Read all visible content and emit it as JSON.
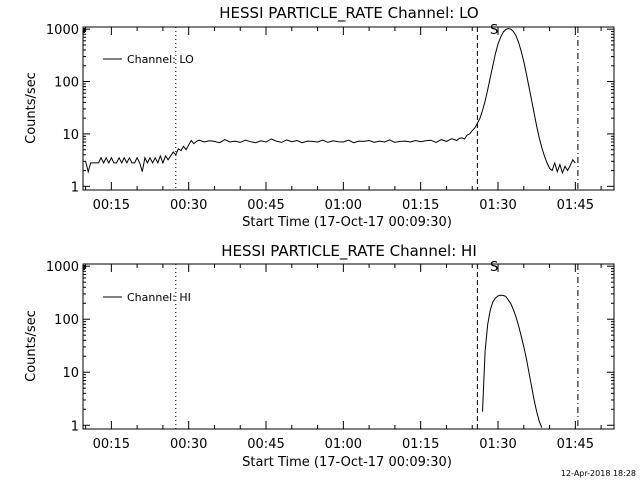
{
  "chart_data": [
    {
      "type": "line",
      "title": "HESSI PARTICLE_RATE Channel: LO",
      "xlabel": "Start Time (17-Oct-17 00:09:30)",
      "ylabel": "Counts/sec",
      "yscale": "log",
      "ylim": [
        0.85,
        1100
      ],
      "xlim_min": [
        9.5,
        112.5
      ],
      "x_tick_labels": [
        "00:15",
        "00:30",
        "00:45",
        "01:00",
        "01:15",
        "01:30",
        "01:45"
      ],
      "x_tick_values_min": [
        15,
        30,
        45,
        60,
        75,
        90,
        105
      ],
      "y_tick_labels": [
        "1",
        "10",
        "100",
        "1000"
      ],
      "y_tick_values": [
        1,
        10,
        100,
        1000
      ],
      "legend": {
        "entries": [
          "Channel: LO"
        ],
        "placement": "top-left"
      },
      "flag_label": "S",
      "vlines": [
        {
          "x_min": 27.5,
          "style": "dotted"
        },
        {
          "x_min": 86.0,
          "style": "dashed"
        },
        {
          "x_min": 105.5,
          "style": "dashdot"
        }
      ],
      "series": [
        {
          "name": "Channel: LO",
          "x_min": [
            10.0,
            10.5,
            11.0,
            11.5,
            12.0,
            12.5,
            13.0,
            13.5,
            14.0,
            14.5,
            15.0,
            15.5,
            16.0,
            16.5,
            17.0,
            17.5,
            18.0,
            18.5,
            19.0,
            19.5,
            20.0,
            20.5,
            21.0,
            21.5,
            22.0,
            22.5,
            23.0,
            23.5,
            24.0,
            24.5,
            25.0,
            25.5,
            26.0,
            26.5,
            27.0,
            27.5,
            28.0,
            28.5,
            29.0,
            29.5,
            30.0,
            30.5,
            31.0,
            31.5,
            32.0,
            33.0,
            34.0,
            35.0,
            36.0,
            37.0,
            38.0,
            39.0,
            40.0,
            41.0,
            42.0,
            43.0,
            44.0,
            45.0,
            46.0,
            47.0,
            48.0,
            49.0,
            50.0,
            51.0,
            52.0,
            53.0,
            54.0,
            55.0,
            56.0,
            57.0,
            58.0,
            59.0,
            60.0,
            61.0,
            62.0,
            63.0,
            64.0,
            65.0,
            66.0,
            67.0,
            68.0,
            69.0,
            70.0,
            71.0,
            72.0,
            73.0,
            74.0,
            75.0,
            76.0,
            77.0,
            78.0,
            79.0,
            80.0,
            81.0,
            82.0,
            82.5,
            83.0,
            83.5,
            84.0,
            84.5,
            85.0,
            85.5,
            86.0,
            86.5,
            87.0,
            87.5,
            88.0,
            88.5,
            89.0,
            89.5,
            90.0,
            90.5,
            91.0,
            91.5,
            92.0,
            92.5,
            93.0,
            93.5,
            94.0,
            94.5,
            95.0,
            95.5,
            96.0,
            96.5,
            97.0,
            97.5,
            98.0,
            98.5,
            99.0,
            99.5,
            100.0,
            100.5,
            101.0,
            101.5,
            102.0,
            102.5,
            103.0,
            103.5,
            104.0,
            104.5,
            105.0
          ],
          "y": [
            3.0,
            1.9,
            2.8,
            2.8,
            2.8,
            2.8,
            3.5,
            2.8,
            3.5,
            2.8,
            3.5,
            2.8,
            2.8,
            3.5,
            2.8,
            3.5,
            2.8,
            3.5,
            2.8,
            2.8,
            3.5,
            2.8,
            1.9,
            3.5,
            2.8,
            3.5,
            2.8,
            3.5,
            2.8,
            3.8,
            2.8,
            3.8,
            3.2,
            3.8,
            4.5,
            4.0,
            5.2,
            4.8,
            5.8,
            5.0,
            6.2,
            7.5,
            6.5,
            7.2,
            7.6,
            7.0,
            7.4,
            7.2,
            6.8,
            7.8,
            7.0,
            7.3,
            6.9,
            7.6,
            7.1,
            6.8,
            7.4,
            7.0,
            8.0,
            7.3,
            6.9,
            7.7,
            7.1,
            7.5,
            6.8,
            7.3,
            7.2,
            7.0,
            7.6,
            6.9,
            7.4,
            7.1,
            7.0,
            7.6,
            6.8,
            7.3,
            7.2,
            7.5,
            6.9,
            7.3,
            7.0,
            7.7,
            6.9,
            7.2,
            7.3,
            7.0,
            7.5,
            7.1,
            7.4,
            7.6,
            6.9,
            7.8,
            7.2,
            8.1,
            7.5,
            8.2,
            8.4,
            8.0,
            9.5,
            10.0,
            11.5,
            13.0,
            16.0,
            20.0,
            28.0,
            42.0,
            70.0,
            120.0,
            200.0,
            340.0,
            520.0,
            700.0,
            880.0,
            980.0,
            1030.0,
            1000.0,
            900.0,
            750.0,
            560.0,
            380.0,
            240.0,
            140.0,
            80.0,
            45.0,
            25.0,
            14.0,
            8.5,
            5.5,
            3.8,
            2.8,
            2.2,
            2.0,
            2.8,
            1.9,
            2.6,
            1.8,
            2.4,
            2.0,
            2.5,
            3.2,
            2.8
          ]
        }
      ]
    },
    {
      "type": "line",
      "title": "HESSI PARTICLE_RATE Channel: HI",
      "xlabel": "Start Time (17-Oct-17 00:09:30)",
      "ylabel": "Counts/sec",
      "yscale": "log",
      "ylim": [
        0.85,
        1100
      ],
      "xlim_min": [
        9.5,
        112.5
      ],
      "x_tick_labels": [
        "00:15",
        "00:30",
        "00:45",
        "01:00",
        "01:15",
        "01:30",
        "01:45"
      ],
      "x_tick_values_min": [
        15,
        30,
        45,
        60,
        75,
        90,
        105
      ],
      "y_tick_labels": [
        "1",
        "10",
        "100",
        "1000"
      ],
      "y_tick_values": [
        1,
        10,
        100,
        1000
      ],
      "legend": {
        "entries": [
          "Channel: HI"
        ],
        "placement": "top-left"
      },
      "flag_label": "S",
      "vlines": [
        {
          "x_min": 27.5,
          "style": "dotted"
        },
        {
          "x_min": 86.0,
          "style": "dashed"
        },
        {
          "x_min": 105.5,
          "style": "dashdot"
        }
      ],
      "series": [
        {
          "name": "Channel: HI",
          "x_min": [
            87.0,
            87.5,
            88.0,
            88.5,
            89.0,
            89.5,
            90.0,
            90.5,
            91.0,
            91.5,
            92.0,
            92.5,
            93.0,
            93.5,
            94.0,
            94.5,
            95.0,
            95.5,
            96.0,
            96.5,
            97.0,
            97.5,
            98.0,
            98.5
          ],
          "y": [
            1.8,
            25.0,
            80.0,
            150.0,
            210.0,
            250.0,
            275.0,
            285.0,
            280.0,
            270.0,
            230.0,
            195.0,
            150.0,
            110.0,
            75.0,
            48.0,
            30.0,
            18.0,
            10.0,
            5.5,
            3.0,
            1.8,
            1.2,
            0.9
          ]
        }
      ]
    }
  ],
  "timestamp": "12-Apr-2018 18:28"
}
